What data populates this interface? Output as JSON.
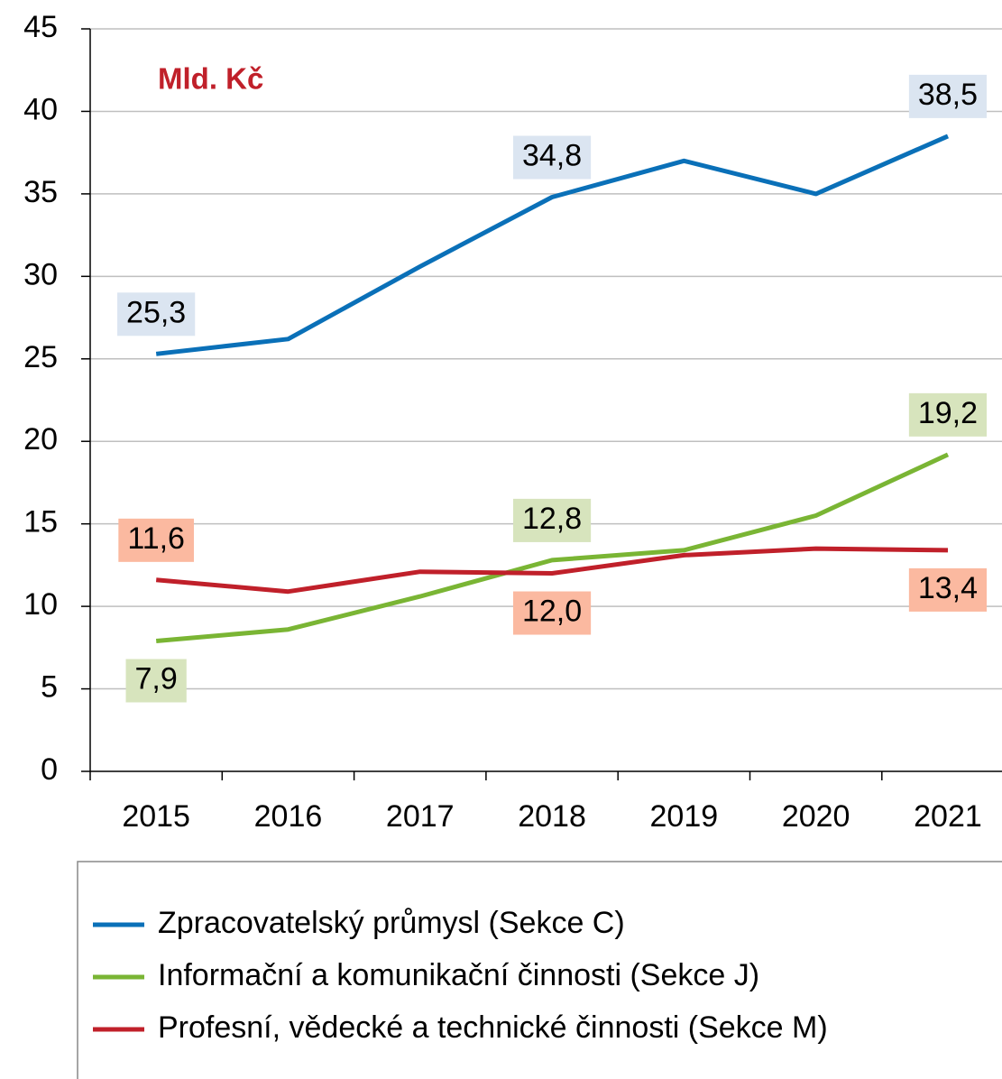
{
  "chart_data": {
    "type": "line",
    "annotation": "Mld. Kč",
    "annotation_color": "#c0202a",
    "categories": [
      "2015",
      "2016",
      "2017",
      "2018",
      "2019",
      "2020",
      "2021"
    ],
    "ylim": [
      0,
      45
    ],
    "yticks": [
      0,
      5,
      10,
      15,
      20,
      25,
      30,
      35,
      40,
      45
    ],
    "grid": true,
    "legend": "bottom",
    "series": [
      {
        "name": "Zpracovatelský průmysl (Sekce C)",
        "color": "#0a70b8",
        "label_color": "#dbe5f1",
        "values": [
          25.3,
          26.2,
          30.6,
          34.8,
          37.0,
          35.0,
          38.5
        ],
        "value_labels": [
          "25,3",
          null,
          null,
          "34,8",
          null,
          null,
          "38,5"
        ]
      },
      {
        "name": "Informační a komunikační činnosti (Sekce J)",
        "color": "#7ab534",
        "label_color": "#d7e4bd",
        "values": [
          7.9,
          8.6,
          10.6,
          12.8,
          13.4,
          15.5,
          19.2
        ],
        "value_labels": [
          "7,9",
          null,
          null,
          "12,8",
          null,
          null,
          "19,2"
        ]
      },
      {
        "name": "Profesní, vědecké a technické činnosti (Sekce M)",
        "color": "#c0202a",
        "label_color": "#fbb9a0",
        "values": [
          11.6,
          10.9,
          12.1,
          12.0,
          13.1,
          13.5,
          13.4
        ],
        "value_labels": [
          "11,6",
          null,
          null,
          "12,0",
          null,
          null,
          "13,4"
        ]
      }
    ]
  }
}
